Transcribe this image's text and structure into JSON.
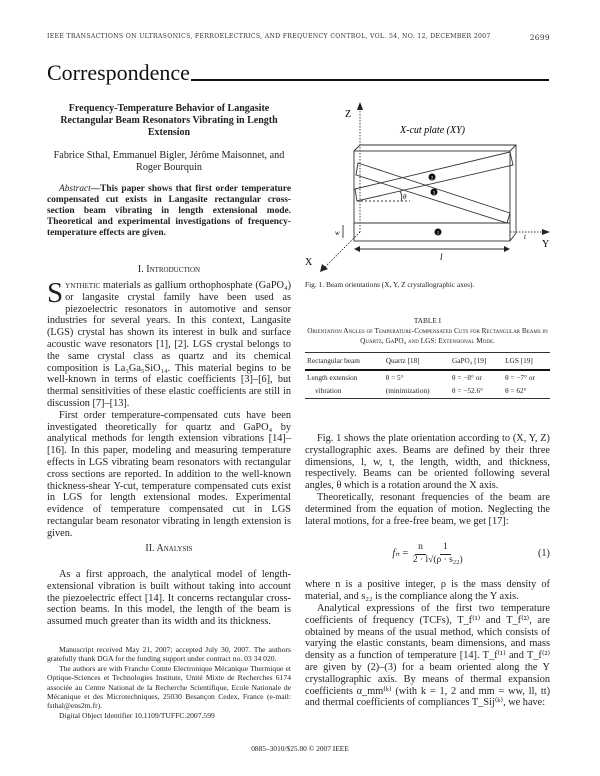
{
  "header": {
    "journal": "IEEE Transactions on Ultrasonics, Ferroelectrics, and Frequency Control, vol. 54, no. 12, December 2007",
    "page_number": "2699",
    "section": "Correspondence"
  },
  "paper": {
    "title": "Frequency-Temperature Behavior of Langasite Rectangular Beam Resonators Vibrating in Length Extension",
    "authors": "Fabrice Sthal, Emmanuel Bigler, Jérôme Maisonnet, and Roger Bourquin",
    "abstract_label": "Abstract",
    "abstract": "—This paper shows that first order temperature compensated cut exists in Langasite rectangular cross-section beam vibrating in length extensional mode. Theoretical and experimental investigations of frequency-temperature effects are given."
  },
  "intro": {
    "heading": "I. Introduction",
    "drop_cap": "S",
    "lead_caps": "ynthetic",
    "p1": " materials as gallium orthophosphate (GaPO₄) or langasite crystal family have been used as piezoelectric resonators in automotive and sensor industries for several years. In this context, Langasite (LGS) crystal has shown its interest in bulk and surface acoustic wave resonators [1], [2]. LGS crystal belongs to the same crystal class as quartz and its chemical composition is La₃Ga₅SiO₁₄. This material begins to be well-known in terms of elastic coefficients [3]–[6], but thermal sensitivities of these elastic coefficients are still in discussion [7]–[13].",
    "p2": "First order temperature-compensated cuts have been investigated theoretically for quartz and GaPO₄ by analytical methods for length extension vibrations [14]–[16]. In this paper, modeling and measuring temperature effects in LGS vibrating beam resonators with rectangular cross sections are reported. In addition to the well-known thickness-shear Y-cut, temperature compensated cuts exist in LGS for length extensional modes. Experimental evidence of temperature compensated cut in LGS rectangular beam resonator vibrating in length extension is given."
  },
  "analysis": {
    "heading": "II. Analysis",
    "p1": "As a first approach, the analytical model of length-extensional vibration is built without taking into account the piezoelectric effect [14]. It concerns rectangular cross-section beams. In this model, the length of the beam is assumed much greater than its width and its thickness."
  },
  "footnotes": [
    "Manuscript received May 21, 2007; accepted July 30, 2007. The authors gratefully thank DGA for the funding support under contract no. 03 34 020.",
    "The authors are with Franche Comte Electronique Mécanique Thermique et Optique-Sciences et Technologies Institute, Unité Mixte de Recherches 6174 associée au Centre National de la Recherche Scientifique, Ecole Nationale de Mécanique et des Microtechniques, 25030 Besançon Cedex, France (e-mail: fsthal@ens2m.fr).",
    "Digital Object Identifier 10.1109/TUFFC.2007.599"
  ],
  "figure": {
    "plate_label": "X-cut plate (XY)",
    "axes": {
      "x": "X",
      "y": "Y",
      "z": "Z"
    },
    "dims": {
      "l": "l",
      "w": "w",
      "t": "t",
      "theta": "θ"
    },
    "beams": [
      "1",
      "2",
      "3"
    ],
    "caption": "Fig. 1. Beam orientations (X, Y, Z crystallographic axes)."
  },
  "table": {
    "number": "TABLE I",
    "title": "Orientation Angles of Temperature-Compensated Cuts for Rectangular Beams in Quartz, GaPO₄ and LGS: Extensional Mode.",
    "columns": [
      "Rectangular beam",
      "Quartz [18]",
      "GaPO₄ [19]",
      "LGS [19]"
    ],
    "rows": [
      [
        "Length extension",
        "θ = 5°",
        "θ = −8° or",
        "θ = −7° or"
      ],
      [
        "vibration",
        "(minimization)",
        "θ = −52.6°",
        "θ = 62°"
      ]
    ]
  },
  "right_text": {
    "p1": "Fig. 1 shows the plate orientation according to (X, Y, Z) crystallographic axes. Beams are defined by their three dimensions, l, w, t, the length, width, and thickness, respectively. Beams can be oriented following several angles, θ which is a rotation around the X axis.",
    "p2": "Theoretically, resonant frequencies of the beam are determined from the equation of motion. Neglecting the lateral motions, for a free-free beam, we get [17]:",
    "eq_lhs": "fₙ =",
    "eq_num1": "n",
    "eq_den1": "2 · l",
    "eq_num2": "1",
    "eq_den2": "√(ρ · s₂₂)",
    "eq_label": "(1)",
    "p3": "where n is a positive integer, ρ is the mass density of material, and s₂₂ is the compliance along the Y axis.",
    "p4": "Analytical expressions of the first two temperature coefficients of frequency (TCFs), T_f⁽¹⁾ and T_f⁽²⁾, are obtained by means of the usual method, which consists of varying the elastic constants, beam dimensions, and mass density as a function of temperature [14]. T_f⁽¹⁾ and T_f⁽²⁾ are given by (2)–(3) for a beam oriented along the Y crystallographic axis. By means of thermal expansion coefficients α_mm⁽ᵏ⁾ (with k = 1, 2 and mm = ww, ll, tt) and thermal coefficients of compliances T_Sij⁽ᵏ⁾, we have:"
  },
  "footer": "0885–3010/$25.00 © 2007 IEEE"
}
